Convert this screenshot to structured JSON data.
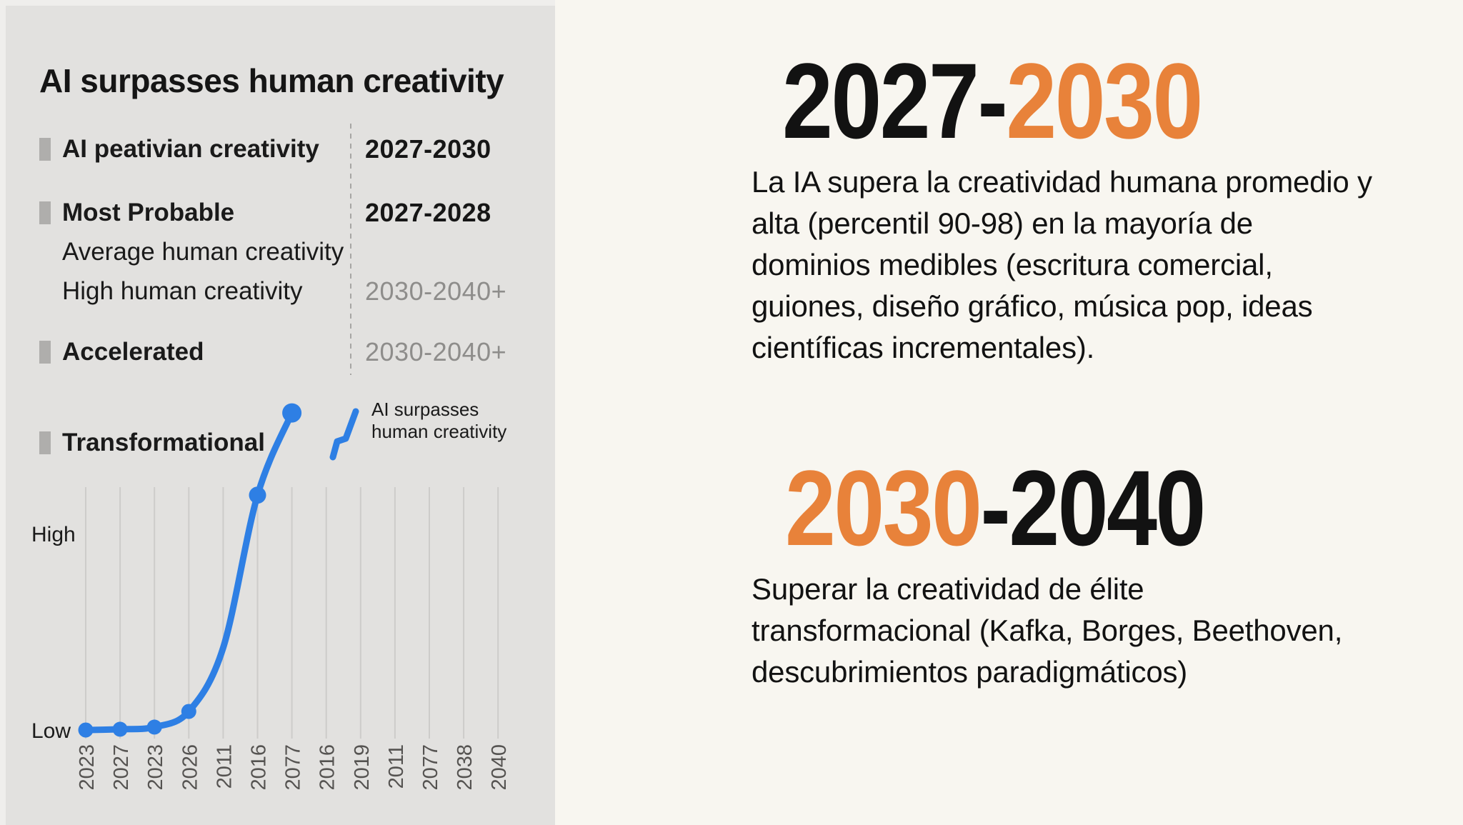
{
  "colors": {
    "left_bg": "#E2E1DF",
    "right_bg": "#F8F6F0",
    "accent_blue": "#2E7FE4",
    "accent_orange": "#E8823A",
    "gridline": "#CDCCCA",
    "muted_value": "#8E8D8B",
    "marker_gray": "#AFAEAC",
    "axis_label": "#555351"
  },
  "left_panel": {
    "title": "AI surpasses human creativity",
    "rows": [
      {
        "label": "AI peativian creativity",
        "bold": true,
        "marker": true,
        "value": "2027-2030",
        "value_style": "dark"
      },
      {
        "label": "Most Probable",
        "bold": true,
        "marker": true,
        "value": "2027-2028",
        "value_style": "dark"
      },
      {
        "label": "Average human creativity",
        "bold": false,
        "marker": false,
        "value": "",
        "value_style": "dark"
      },
      {
        "label": "High human creativity",
        "bold": false,
        "marker": false,
        "value": "2030-2040+",
        "value_style": "gray"
      },
      {
        "label": "Accelerated",
        "bold": true,
        "marker": true,
        "value": "2030-2040+",
        "value_style": "gray"
      },
      {
        "label": "Transformational",
        "bold": true,
        "marker": true,
        "value": "",
        "value_style": "dark"
      }
    ],
    "mini_legend": {
      "line1": "AI surpasses",
      "line2": "human creativity"
    }
  },
  "chart_data": {
    "type": "line",
    "title": "AI surpasses human creativity",
    "xlabel": "",
    "ylabel": "",
    "grid": "vertical-only",
    "legend_position": "top-right-of-plot",
    "y_axis": {
      "type": "qualitative",
      "tick_labels": [
        "Low",
        "High"
      ]
    },
    "x_tick_labels": [
      "2023",
      "2027",
      "2023",
      "2026",
      "2011",
      "2016",
      "2077",
      "2016",
      "2019",
      "2011",
      "2077",
      "2038",
      "2040"
    ],
    "series": [
      {
        "name": "AI surpasses human creativity",
        "color": "#2E7FE4",
        "note": "level is qualitative: 0 = Low gridline, 1 = High gridline; curve ends above High",
        "points": [
          {
            "x_index": 0,
            "x_label": "2023",
            "level": 0.0,
            "dot": true
          },
          {
            "x_index": 1,
            "x_label": "2027",
            "level": 0.004,
            "dot": true
          },
          {
            "x_index": 2,
            "x_label": "2023",
            "level": 0.015,
            "dot": true
          },
          {
            "x_index": 3,
            "x_label": "2026",
            "level": 0.095,
            "dot": true
          },
          {
            "x_index": 4,
            "x_label": "2011",
            "level": 0.42,
            "dot": false
          },
          {
            "x_index": 5,
            "x_label": "2016",
            "level": 1.2,
            "dot": true
          },
          {
            "x_index": 6,
            "x_label": "2077",
            "level": 1.62,
            "dot": true
          }
        ]
      }
    ]
  },
  "right_panel": {
    "heading1": {
      "black": "2027-",
      "orange": "2030"
    },
    "paragraph1_lines": [
      "La IA supera la creatividad humana promedio y",
      "alta (percentil 90-98) en la mayoría de",
      "dominios medibles (escritura comercial,",
      "guiones, diseño gráfico, música pop, ideas",
      "científicas incrementales)."
    ],
    "heading2": {
      "orange": "2030",
      "black": "-2040"
    },
    "paragraph2_lines": [
      "Superar la creatividad de élite",
      "transformacional (Kafka, Borges, Beethoven,",
      "descubrimientos paradigmáticos)"
    ]
  }
}
